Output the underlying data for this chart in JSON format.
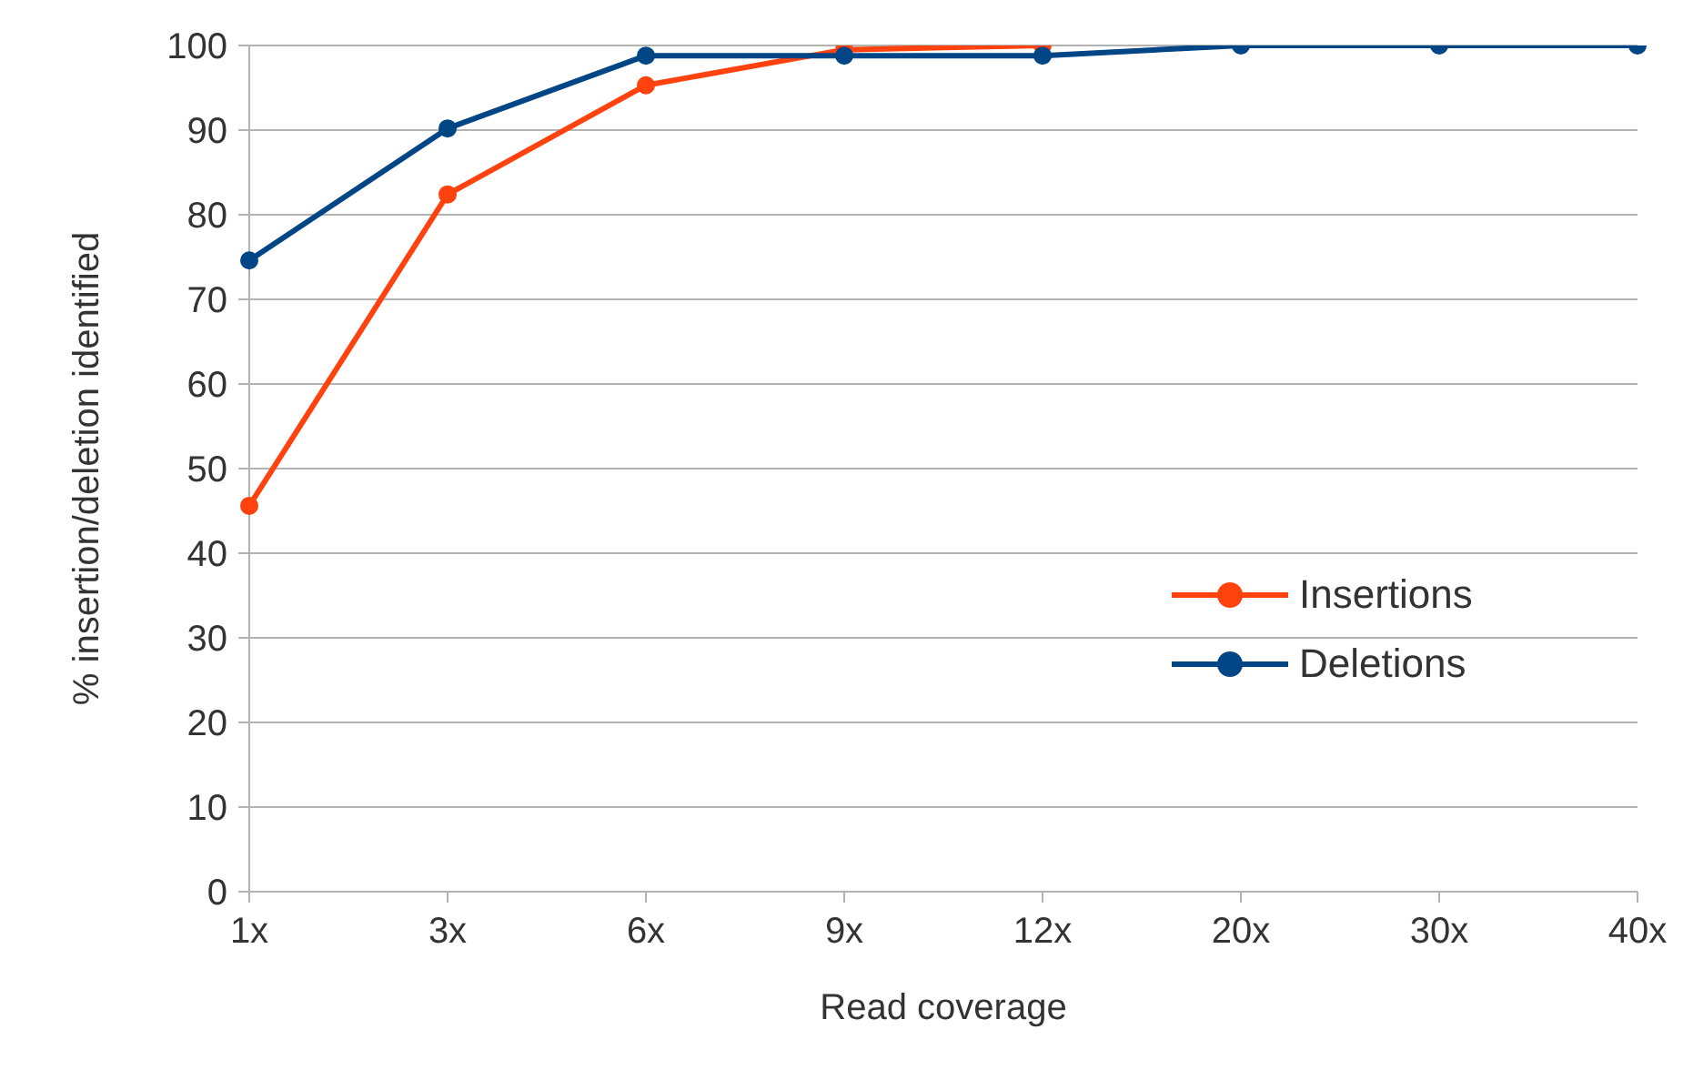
{
  "chart_data": {
    "type": "line",
    "xlabel": "Read coverage",
    "ylabel": "% insertion/deletion identified",
    "categories": [
      "1x",
      "3x",
      "6x",
      "9x",
      "12x",
      "20x",
      "30x",
      "40x"
    ],
    "series": [
      {
        "name": "Insertions",
        "color": "#ff420e",
        "values": [
          45.6,
          82.4,
          95.3,
          99.5,
          100,
          null,
          null,
          null
        ]
      },
      {
        "name": "Deletions",
        "color": "#004586",
        "values": [
          74.6,
          90.2,
          98.8,
          98.8,
          98.8,
          100,
          100,
          100
        ]
      }
    ],
    "ylim": [
      0,
      100
    ],
    "yticks": [
      0,
      10,
      20,
      30,
      40,
      50,
      60,
      70,
      80,
      90,
      100
    ],
    "grid": "y",
    "legend": "right",
    "marker": "circle",
    "line_style": "solid"
  }
}
